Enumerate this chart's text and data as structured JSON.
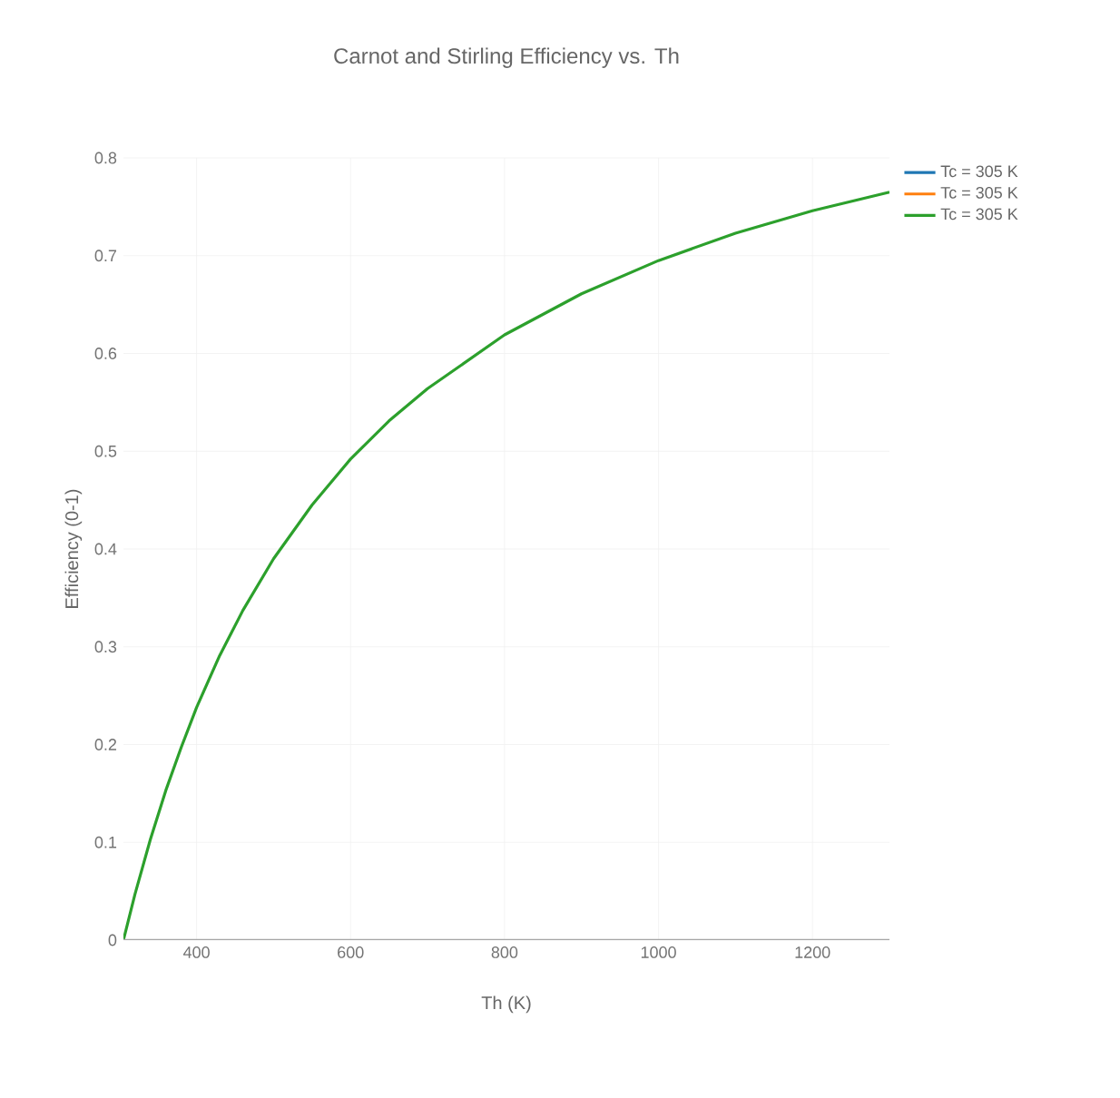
{
  "chart_data": {
    "type": "line",
    "title": "Carnot and Stirling Efficiency vs. Th",
    "xlabel": "Th (K)",
    "ylabel": "Efficiency (0-1)",
    "x": [
      305,
      320,
      340,
      360,
      380,
      400,
      430,
      460,
      500,
      550,
      600,
      650,
      700,
      800,
      900,
      1000,
      1100,
      1200,
      1300
    ],
    "series": [
      {
        "name": "Tc = 305 K",
        "color": "#1f77b4",
        "values": [
          null,
          null,
          null,
          null,
          null,
          null,
          null,
          null,
          null,
          null,
          null,
          null,
          null,
          null,
          null,
          null,
          null,
          null,
          null
        ]
      },
      {
        "name": "Tc = 305 K",
        "color": "#ff7f0e",
        "values": [
          null,
          null,
          null,
          null,
          null,
          null,
          null,
          null,
          null,
          null,
          null,
          null,
          null,
          null,
          null,
          null,
          null,
          null,
          null
        ]
      },
      {
        "name": "Tc = 305 K",
        "color": "#2ca02c",
        "values": [
          0,
          0.047,
          0.103,
          0.153,
          0.197,
          0.238,
          0.291,
          0.337,
          0.39,
          0.445,
          0.492,
          0.531,
          0.564,
          0.619,
          0.661,
          0.695,
          0.723,
          0.746,
          0.765
        ]
      }
    ],
    "xlim": [
      305,
      1300
    ],
    "ylim": [
      0,
      0.8
    ],
    "xticks": [
      400,
      600,
      800,
      1000,
      1200
    ],
    "yticks": [
      0,
      0.1,
      0.2,
      0.3,
      0.4,
      0.5,
      0.6,
      0.7,
      0.8
    ],
    "grid": true,
    "legend": "top right",
    "marker": "none",
    "line_style": "solid"
  }
}
